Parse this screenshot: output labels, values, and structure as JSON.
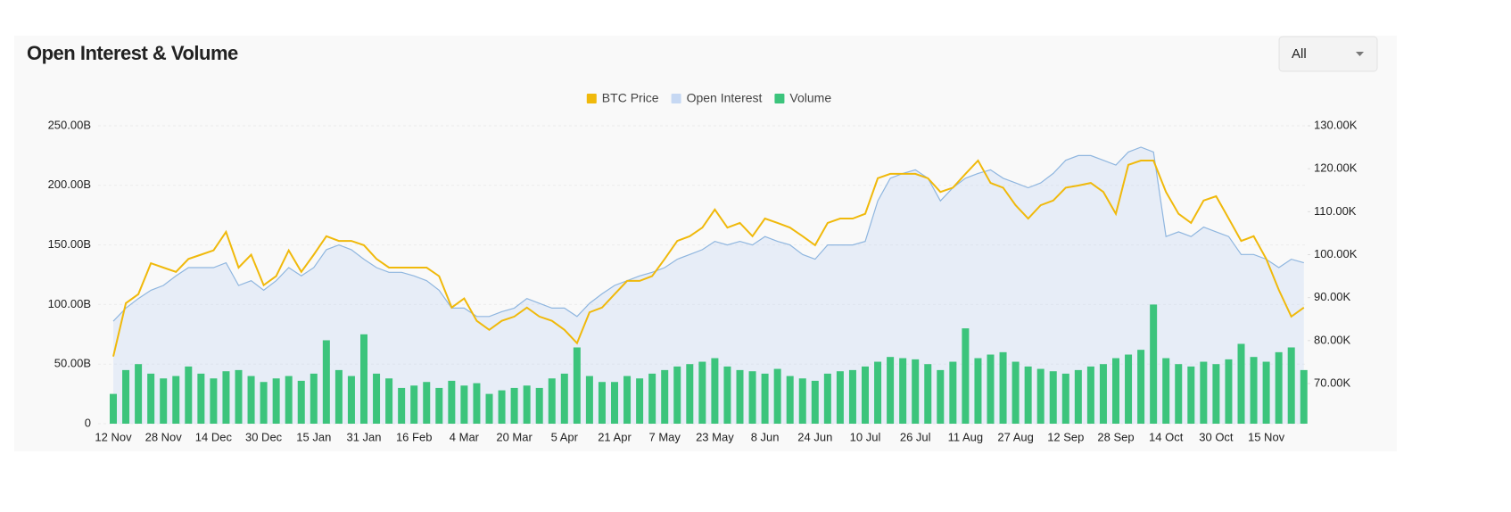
{
  "chart_data": {
    "type": "combo",
    "title": "Open Interest & Volume",
    "categories": [
      "12 Nov",
      null,
      null,
      null,
      "28 Nov",
      null,
      null,
      null,
      "14 Dec",
      null,
      null,
      null,
      "30 Dec",
      null,
      null,
      null,
      "15 Jan",
      null,
      null,
      null,
      "31 Jan",
      null,
      null,
      null,
      "16 Feb",
      null,
      null,
      null,
      "4 Mar",
      null,
      null,
      null,
      "20 Mar",
      null,
      null,
      null,
      "5 Apr",
      null,
      null,
      null,
      "21 Apr",
      null,
      null,
      null,
      "7 May",
      null,
      null,
      null,
      "23 May",
      null,
      null,
      null,
      "8 Jun",
      null,
      null,
      null,
      "24 Jun",
      null,
      null,
      null,
      "10 Jul",
      null,
      null,
      null,
      "26 Jul",
      null,
      null,
      null,
      "11 Aug",
      null,
      null,
      null,
      "27 Aug",
      null,
      null,
      null,
      "12 Sep",
      null,
      null,
      null,
      "28 Sep",
      null,
      null,
      null,
      "14 Oct",
      null,
      null,
      null,
      "30 Oct",
      null,
      null,
      null,
      "15 Nov",
      null,
      null,
      null
    ],
    "series": [
      {
        "name": "BTC Price",
        "type": "line",
        "axis": "y2",
        "color": "#f0b90b",
        "values": [
          76.3,
          88.7,
          90.8,
          98,
          97,
          96,
          99,
          100,
          101,
          105.3,
          97,
          100,
          92.9,
          95,
          101,
          96,
          100,
          104.3,
          103.2,
          103.2,
          102.2,
          99,
          97,
          97,
          97,
          97,
          95,
          87.7,
          89.8,
          84.6,
          82.5,
          84.6,
          85.6,
          87.7,
          85.6,
          84.6,
          82.5,
          79.4,
          86.6,
          87.7,
          90.8,
          93.9,
          93.9,
          95,
          99,
          103.2,
          104.3,
          106.3,
          110.5,
          106.3,
          107.4,
          104.3,
          108.4,
          107.4,
          106.3,
          104.3,
          102.2,
          107.4,
          108.4,
          108.4,
          109.5,
          117.8,
          118.8,
          118.8,
          118.8,
          117.8,
          114.6,
          115.6,
          118.8,
          121.9,
          116.7,
          115.6,
          111.5,
          108.4,
          111.5,
          112.6,
          115.6,
          116.1,
          116.7,
          114.6,
          109.5,
          120.9,
          121.9,
          121.9,
          114.6,
          109.5,
          107.4,
          112.6,
          113.6,
          108.4,
          103.2,
          104.3,
          99,
          91.8,
          85.6,
          87.7
        ]
      },
      {
        "name": "Open Interest",
        "type": "area",
        "color": "#c6d8f3",
        "values": [
          86,
          97,
          105,
          112,
          116,
          124,
          131,
          131,
          131,
          135,
          116,
          120,
          112,
          120,
          131,
          124,
          131,
          146,
          150,
          146,
          138,
          131,
          127,
          127,
          124,
          120,
          112,
          97,
          97,
          90,
          90,
          94,
          97,
          105,
          101,
          97,
          97,
          90,
          101,
          109,
          116,
          120,
          124,
          127,
          131,
          138,
          142,
          146,
          153,
          150,
          153,
          150,
          157,
          153,
          150,
          142,
          138,
          150,
          150,
          150,
          153,
          187,
          206,
          210,
          213,
          206,
          187,
          198,
          206,
          210,
          213,
          206,
          202,
          198,
          202,
          210,
          221,
          225,
          225,
          221,
          217,
          228,
          232,
          228,
          157,
          161,
          157,
          165,
          161,
          157,
          142,
          142,
          138,
          131,
          138,
          135
        ]
      },
      {
        "name": "Volume",
        "type": "bar",
        "color": "#3cc47c",
        "values": [
          25,
          45,
          50,
          42,
          38,
          40,
          48,
          42,
          38,
          44,
          45,
          40,
          35,
          38,
          40,
          36,
          42,
          70,
          45,
          40,
          75,
          42,
          38,
          30,
          32,
          35,
          30,
          36,
          32,
          34,
          25,
          28,
          30,
          32,
          30,
          38,
          42,
          64,
          40,
          35,
          35,
          40,
          38,
          42,
          45,
          48,
          50,
          52,
          55,
          48,
          45,
          44,
          42,
          46,
          40,
          38,
          36,
          42,
          44,
          45,
          48,
          52,
          56,
          55,
          54,
          50,
          45,
          52,
          80,
          55,
          58,
          60,
          52,
          48,
          46,
          44,
          42,
          45,
          48,
          50,
          55,
          58,
          62,
          100,
          55,
          50,
          48,
          52,
          50,
          54,
          67,
          56,
          52,
          60,
          64,
          45
        ]
      }
    ],
    "ylim": [
      0,
      250
    ],
    "yticks": [
      0,
      {
        "value": 50,
        "label": "50.00B"
      },
      {
        "value": 100,
        "label": "100.00B"
      },
      {
        "value": 150,
        "label": "150.00B"
      },
      {
        "value": 200,
        "label": "200.00B"
      },
      {
        "value": 250,
        "label": "250.00B"
      }
    ],
    "y2lim": [
      60.66,
      130
    ],
    "y2ticks": [
      {
        "value": 70,
        "label": "70.00K"
      },
      {
        "value": 80,
        "label": "80.00K"
      },
      {
        "value": 90,
        "label": "90.00K"
      },
      {
        "value": 100,
        "label": "100.00K"
      },
      {
        "value": 110,
        "label": "110.00K"
      },
      {
        "value": 120,
        "label": "120.00K"
      },
      {
        "value": 130,
        "label": "130.00K"
      }
    ],
    "grid": true,
    "legend": "top"
  },
  "controls": {
    "range": "All"
  }
}
